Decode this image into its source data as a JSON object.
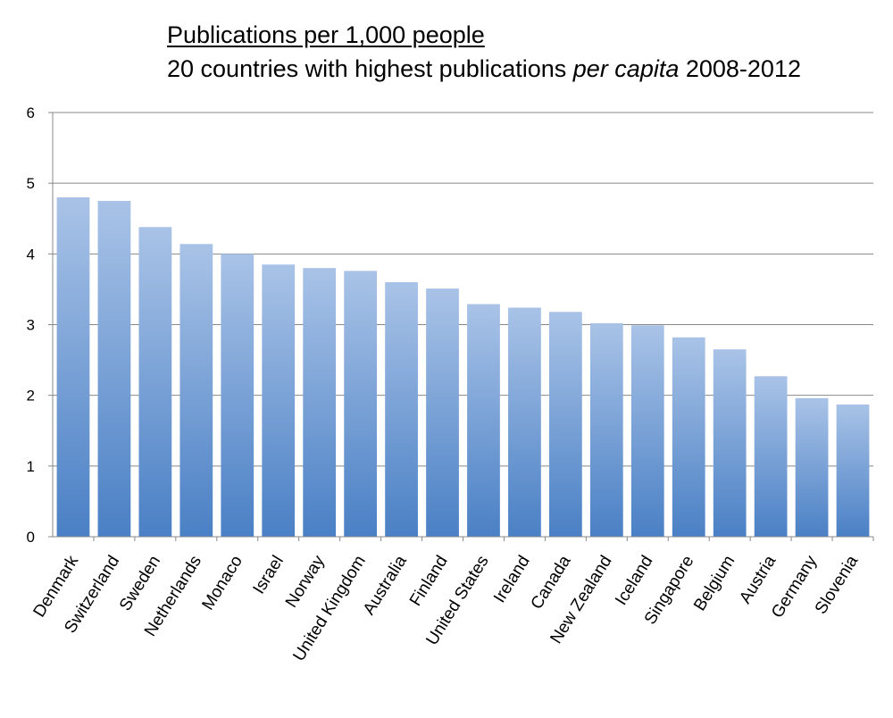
{
  "chart_data": {
    "type": "bar",
    "title": "Publications per 1,000 people",
    "subtitle_parts": [
      "20 countries with highest publications ",
      "per capita",
      " 2008-2012"
    ],
    "xlabel": "",
    "ylabel": "",
    "ylim": [
      0,
      6
    ],
    "yticks": [
      "0",
      "1",
      "2",
      "3",
      "4",
      "5",
      "6"
    ],
    "grid": true,
    "legend": "none",
    "categories": [
      "Denmark",
      "Switzerland",
      "Sweden",
      "Netherlands",
      "Monaco",
      "Israel",
      "Norway",
      "United Kingdom",
      "Australia",
      "Finland",
      "United States",
      "Ireland",
      "Canada",
      "New Zealand",
      "Iceland",
      "Singapore",
      "Belgium",
      "Austria",
      "Germany",
      "Slovenia"
    ],
    "values": [
      4.8,
      4.75,
      4.38,
      4.14,
      4.0,
      3.85,
      3.8,
      3.76,
      3.6,
      3.51,
      3.29,
      3.24,
      3.18,
      3.02,
      2.99,
      2.82,
      2.65,
      2.27,
      1.96,
      1.87
    ],
    "colors": {
      "bar_top": "#a9c3e7",
      "bar_bottom": "#4a80c5",
      "grid": "#888888",
      "axis": "#888888"
    }
  }
}
